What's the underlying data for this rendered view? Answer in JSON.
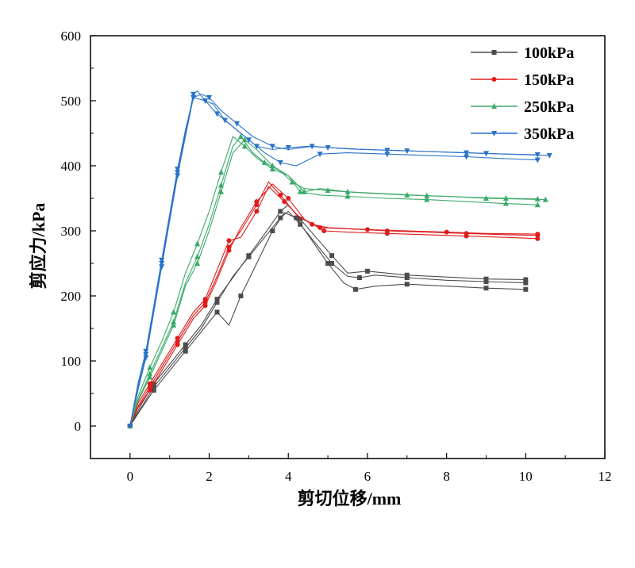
{
  "chart_data": {
    "type": "line",
    "title": "",
    "xlabel": "剪切位移/mm",
    "ylabel": "剪应力/kPa",
    "xlim": [
      -1,
      12
    ],
    "ylim": [
      -50,
      600
    ],
    "xticks": [
      0,
      2,
      4,
      6,
      8,
      10,
      12
    ],
    "yticks": [
      0,
      100,
      200,
      300,
      400,
      500,
      600
    ],
    "xtick_labels": [
      "0",
      "2",
      "4",
      "6",
      "8",
      "10",
      "12"
    ],
    "ytick_labels": [
      "0",
      "100",
      "200",
      "300",
      "400",
      "500",
      "600"
    ],
    "grid": false,
    "legend": "top-right",
    "series": [
      {
        "name": "100kPa",
        "color": "#4d4d4d",
        "marker": "square",
        "curves": [
          [
            [
              0,
              0
            ],
            [
              0.3,
              30
            ],
            [
              0.6,
              60
            ],
            [
              1.0,
              90
            ],
            [
              1.4,
              120
            ],
            [
              1.8,
              150
            ],
            [
              2.2,
              190
            ],
            [
              2.6,
              230
            ],
            [
              3.0,
              260
            ],
            [
              3.4,
              290
            ],
            [
              3.8,
              320
            ],
            [
              4.0,
              330
            ],
            [
              4.3,
              310
            ],
            [
              4.7,
              280
            ],
            [
              5.1,
              250
            ],
            [
              5.5,
              230
            ],
            [
              5.8,
              228
            ],
            [
              6.2,
              232
            ],
            [
              7,
              228
            ],
            [
              8,
              224
            ],
            [
              9,
              222
            ],
            [
              10,
              220
            ]
          ],
          [
            [
              0,
              0
            ],
            [
              0.3,
              35
            ],
            [
              0.6,
              65
            ],
            [
              1.0,
              95
            ],
            [
              1.4,
              125
            ],
            [
              1.8,
              155
            ],
            [
              2.2,
              195
            ],
            [
              2.6,
              228
            ],
            [
              3.0,
              262
            ],
            [
              3.4,
              295
            ],
            [
              3.8,
              330
            ],
            [
              4.0,
              340
            ],
            [
              4.3,
              318
            ],
            [
              4.7,
              290
            ],
            [
              5.1,
              262
            ],
            [
              5.5,
              235
            ],
            [
              6.0,
              238
            ],
            [
              6.5,
              235
            ],
            [
              7,
              232
            ],
            [
              8,
              229
            ],
            [
              9,
              226
            ],
            [
              10,
              225
            ]
          ],
          [
            [
              0,
              0
            ],
            [
              0.3,
              28
            ],
            [
              0.6,
              55
            ],
            [
              1.0,
              85
            ],
            [
              1.4,
              115
            ],
            [
              1.8,
              145
            ],
            [
              2.2,
              175
            ],
            [
              2.5,
              155
            ],
            [
              2.8,
              200
            ],
            [
              3.2,
              250
            ],
            [
              3.6,
              300
            ],
            [
              3.9,
              328
            ],
            [
              4.2,
              320
            ],
            [
              4.6,
              285
            ],
            [
              5.0,
              250
            ],
            [
              5.4,
              220
            ],
            [
              5.7,
              210
            ],
            [
              6.2,
              215
            ],
            [
              7,
              218
            ],
            [
              8,
              215
            ],
            [
              9,
              212
            ],
            [
              10,
              210
            ]
          ]
        ]
      },
      {
        "name": "150kPa",
        "color": "#e01b1b",
        "marker": "circle",
        "curves": [
          [
            [
              0,
              0
            ],
            [
              0.2,
              30
            ],
            [
              0.5,
              60
            ],
            [
              0.8,
              90
            ],
            [
              1.2,
              130
            ],
            [
              1.6,
              170
            ],
            [
              1.9,
              190
            ],
            [
              2.2,
              230
            ],
            [
              2.5,
              275
            ],
            [
              2.8,
              300
            ],
            [
              3.2,
              340
            ],
            [
              3.5,
              375
            ],
            [
              3.8,
              355
            ],
            [
              4.2,
              325
            ],
            [
              4.6,
              310
            ],
            [
              5.0,
              305
            ],
            [
              6,
              302
            ],
            [
              7,
              300
            ],
            [
              8,
              298
            ],
            [
              9,
              296
            ],
            [
              10.3,
              295
            ]
          ],
          [
            [
              0,
              0
            ],
            [
              0.2,
              35
            ],
            [
              0.5,
              65
            ],
            [
              0.8,
              95
            ],
            [
              1.2,
              135
            ],
            [
              1.6,
              175
            ],
            [
              1.9,
              195
            ],
            [
              2.2,
              240
            ],
            [
              2.5,
              285
            ],
            [
              2.8,
              290
            ],
            [
              3.2,
              330
            ],
            [
              3.5,
              368
            ],
            [
              3.9,
              345
            ],
            [
              4.3,
              320
            ],
            [
              4.8,
              305
            ],
            [
              5.5,
              303
            ],
            [
              6.5,
              300
            ],
            [
              7.5,
              298
            ],
            [
              8.5,
              296
            ],
            [
              9.5,
              294
            ],
            [
              10.3,
              293
            ]
          ],
          [
            [
              0,
              0
            ],
            [
              0.2,
              28
            ],
            [
              0.5,
              55
            ],
            [
              0.8,
              85
            ],
            [
              1.2,
              125
            ],
            [
              1.6,
              165
            ],
            [
              1.9,
              185
            ],
            [
              2.2,
              225
            ],
            [
              2.5,
              270
            ],
            [
              2.8,
              305
            ],
            [
              3.2,
              345
            ],
            [
              3.6,
              372
            ],
            [
              4.0,
              350
            ],
            [
              4.4,
              318
            ],
            [
              4.9,
              300
            ],
            [
              5.5,
              298
            ],
            [
              6.5,
              296
            ],
            [
              7.5,
              294
            ],
            [
              8.5,
              292
            ],
            [
              9.5,
              290
            ],
            [
              10.3,
              288
            ]
          ]
        ]
      },
      {
        "name": "250kPa",
        "color": "#3aaa68",
        "marker": "triangle",
        "curves": [
          [
            [
              0,
              0
            ],
            [
              0.2,
              40
            ],
            [
              0.5,
              80
            ],
            [
              0.8,
              120
            ],
            [
              1.1,
              160
            ],
            [
              1.4,
              220
            ],
            [
              1.7,
              260
            ],
            [
              2.0,
              310
            ],
            [
              2.3,
              370
            ],
            [
              2.6,
              430
            ],
            [
              2.8,
              445
            ],
            [
              3.1,
              420
            ],
            [
              3.4,
              405
            ],
            [
              3.8,
              392
            ],
            [
              4.1,
              375
            ],
            [
              4.4,
              365
            ],
            [
              5,
              362
            ],
            [
              6,
              358
            ],
            [
              7,
              355
            ],
            [
              8,
              353
            ],
            [
              9,
              350
            ],
            [
              10.5,
              348
            ]
          ],
          [
            [
              0,
              0
            ],
            [
              0.2,
              45
            ],
            [
              0.5,
              90
            ],
            [
              0.8,
              130
            ],
            [
              1.1,
              175
            ],
            [
              1.4,
              235
            ],
            [
              1.7,
              280
            ],
            [
              2.0,
              330
            ],
            [
              2.3,
              390
            ],
            [
              2.6,
              445
            ],
            [
              2.9,
              430
            ],
            [
              3.2,
              412
            ],
            [
              3.6,
              395
            ],
            [
              4.0,
              385
            ],
            [
              4.3,
              360
            ],
            [
              4.8,
              355
            ],
            [
              5.5,
              353
            ],
            [
              6.5,
              350
            ],
            [
              7.5,
              348
            ],
            [
              8.5,
              345
            ],
            [
              9.5,
              342
            ],
            [
              10.3,
              340
            ]
          ],
          [
            [
              0,
              0
            ],
            [
              0.2,
              38
            ],
            [
              0.5,
              75
            ],
            [
              0.8,
              115
            ],
            [
              1.1,
              155
            ],
            [
              1.4,
              215
            ],
            [
              1.7,
              250
            ],
            [
              2.0,
              300
            ],
            [
              2.3,
              360
            ],
            [
              2.6,
              420
            ],
            [
              2.9,
              440
            ],
            [
              3.2,
              425
            ],
            [
              3.6,
              400
            ],
            [
              4.0,
              385
            ],
            [
              4.4,
              360
            ],
            [
              4.8,
              365
            ],
            [
              5.5,
              360
            ],
            [
              6.5,
              357
            ],
            [
              7.5,
              354
            ],
            [
              8.5,
              352
            ],
            [
              9.5,
              350
            ],
            [
              10.3,
              349
            ]
          ]
        ]
      },
      {
        "name": "350kPa",
        "color": "#2a72c9",
        "marker": "triangle-down",
        "curves": [
          [
            [
              0,
              0
            ],
            [
              0.2,
              60
            ],
            [
              0.4,
              110
            ],
            [
              0.6,
              180
            ],
            [
              0.8,
              250
            ],
            [
              1.0,
              320
            ],
            [
              1.2,
              390
            ],
            [
              1.4,
              450
            ],
            [
              1.6,
              510
            ],
            [
              1.7,
              515
            ],
            [
              1.9,
              500
            ],
            [
              2.1,
              495
            ],
            [
              2.4,
              470
            ],
            [
              2.8,
              450
            ],
            [
              3.2,
              430
            ],
            [
              3.6,
              425
            ],
            [
              4.0,
              428
            ],
            [
              4.5,
              430
            ],
            [
              5,
              428
            ],
            [
              6,
              425
            ],
            [
              7,
              423
            ],
            [
              8,
              421
            ],
            [
              9,
              419
            ],
            [
              10,
              417
            ],
            [
              10.6,
              416
            ]
          ],
          [
            [
              0,
              0
            ],
            [
              0.2,
              65
            ],
            [
              0.4,
              115
            ],
            [
              0.6,
              185
            ],
            [
              0.8,
              255
            ],
            [
              1.0,
              325
            ],
            [
              1.2,
              395
            ],
            [
              1.4,
              455
            ],
            [
              1.6,
              505
            ],
            [
              1.8,
              510
            ],
            [
              2.0,
              505
            ],
            [
              2.3,
              485
            ],
            [
              2.7,
              465
            ],
            [
              3.1,
              445
            ],
            [
              3.6,
              430
            ],
            [
              4.0,
              425
            ],
            [
              4.6,
              430
            ],
            [
              5.5,
              426
            ],
            [
              6.5,
              424
            ],
            [
              7.5,
              422
            ],
            [
              8.5,
              420
            ],
            [
              9.5,
              418
            ],
            [
              10.3,
              417
            ]
          ],
          [
            [
              0,
              0
            ],
            [
              0.2,
              55
            ],
            [
              0.4,
              105
            ],
            [
              0.6,
              175
            ],
            [
              0.8,
              245
            ],
            [
              1.0,
              315
            ],
            [
              1.2,
              385
            ],
            [
              1.4,
              445
            ],
            [
              1.6,
              505
            ],
            [
              1.9,
              500
            ],
            [
              2.2,
              480
            ],
            [
              2.6,
              460
            ],
            [
              3.0,
              440
            ],
            [
              3.4,
              420
            ],
            [
              3.8,
              405
            ],
            [
              4.2,
              400
            ],
            [
              4.8,
              418
            ],
            [
              5.5,
              420
            ],
            [
              6.5,
              418
            ],
            [
              7.5,
              416
            ],
            [
              8.5,
              414
            ],
            [
              9.5,
              411
            ],
            [
              10.3,
              409
            ]
          ]
        ]
      }
    ]
  }
}
